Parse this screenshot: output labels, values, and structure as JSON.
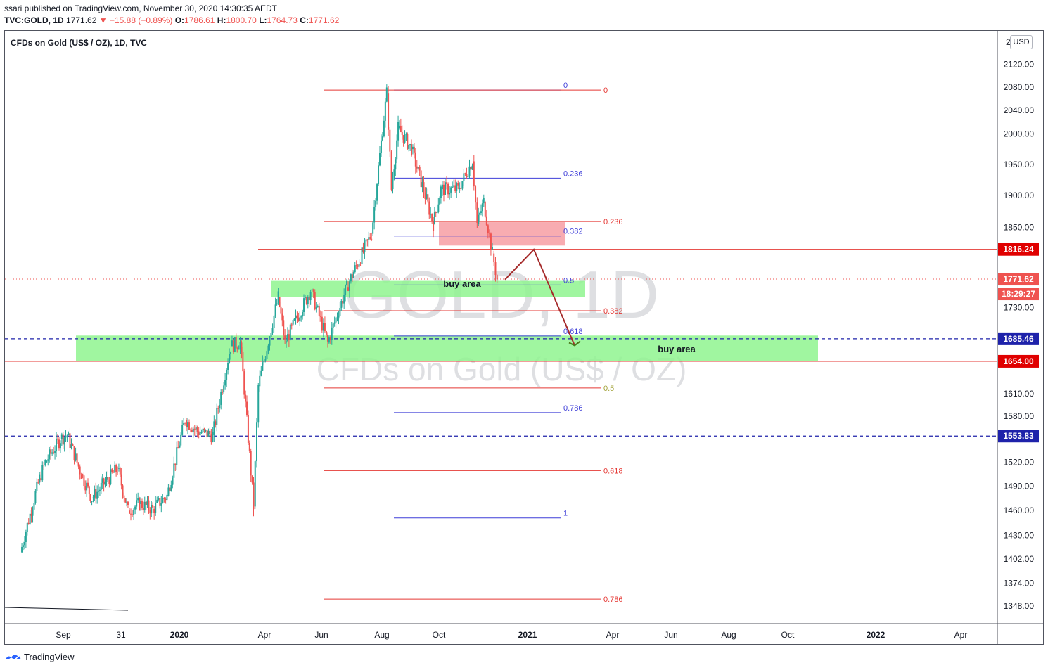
{
  "header": {
    "published_line": "ssari published on TradingView.com, November 30, 2020 14:30:35 AEDT",
    "symbol": "TVC:GOLD, 1D",
    "last": "1771.62",
    "change": "▼ −15.88 (−0.89%)",
    "o_label": "O:",
    "o_value": "1786.61",
    "h_label": "H:",
    "h_value": "1800.70",
    "l_label": "L:",
    "l_value": "1764.73",
    "c_label": "C:",
    "c_value": "1771.62"
  },
  "legend_title": "CFDs on Gold (US$ / OZ), 1D, TVC",
  "watermark": {
    "line1": "GOLD, 1D",
    "line2": "CFDs on Gold (US$ / OZ)"
  },
  "currency_button": "USD",
  "brand": "TradingView",
  "colors": {
    "up": "#26a69a",
    "down": "#ef5350",
    "fib_blue": "#3f3fd8",
    "fib_red": "#e53935",
    "zone_green": "#8ff58f",
    "zone_red": "#f7a3a8",
    "arrow": "#a52a2a",
    "dashed_blue": "#1e22aa"
  },
  "chart_data": {
    "type": "candlestick",
    "title": "CFDs on Gold (US$ / OZ), 1D, TVC",
    "y_axis_ticks": [
      "2120.00",
      "2080.00",
      "2040.00",
      "2000.00",
      "1950.00",
      "1900.00",
      "1850.00",
      "1730.00",
      "1610.00",
      "1580.00",
      "1520.00",
      "1490.00",
      "1460.00",
      "1430.00",
      "1402.00",
      "1374.00",
      "1348.00"
    ],
    "y_axis_top_partial": "2",
    "x_axis_ticks": [
      "Sep",
      "31",
      "2020",
      "Apr",
      "Jun",
      "Aug",
      "Oct",
      "2021",
      "Apr",
      "Jun",
      "Aug",
      "Oct",
      "2022",
      "Apr"
    ],
    "ohlc_path": [
      [
        "2019-07-18",
        1410
      ],
      [
        "2019-08-07",
        1500
      ],
      [
        "2019-08-13",
        1520
      ],
      [
        "2019-08-29",
        1550
      ],
      [
        "2019-09-05",
        1555
      ],
      [
        "2019-09-20",
        1505
      ],
      [
        "2019-10-01",
        1475
      ],
      [
        "2019-10-15",
        1495
      ],
      [
        "2019-10-28",
        1512
      ],
      [
        "2019-11-08",
        1460
      ],
      [
        "2019-11-20",
        1468
      ],
      [
        "2019-12-04",
        1462
      ],
      [
        "2019-12-19",
        1478
      ],
      [
        "2020-01-07",
        1575
      ],
      [
        "2020-01-20",
        1560
      ],
      [
        "2020-02-05",
        1555
      ],
      [
        "2020-02-24",
        1675
      ],
      [
        "2020-03-05",
        1680
      ],
      [
        "2020-03-19",
        1465
      ],
      [
        "2020-03-24",
        1620
      ],
      [
        "2020-04-14",
        1745
      ],
      [
        "2020-04-21",
        1680
      ],
      [
        "2020-05-18",
        1755
      ],
      [
        "2020-06-05",
        1680
      ],
      [
        "2020-06-25",
        1760
      ],
      [
        "2020-07-21",
        1840
      ],
      [
        "2020-08-06",
        2070
      ],
      [
        "2020-08-11",
        1910
      ],
      [
        "2020-08-18",
        2010
      ],
      [
        "2020-09-01",
        1975
      ],
      [
        "2020-09-24",
        1855
      ],
      [
        "2020-10-02",
        1910
      ],
      [
        "2020-10-20",
        1910
      ],
      [
        "2020-11-04",
        1955
      ],
      [
        "2020-11-09",
        1855
      ],
      [
        "2020-11-16",
        1890
      ],
      [
        "2020-11-25",
        1810
      ],
      [
        "2020-11-30",
        1771.62
      ]
    ],
    "price_labels": [
      {
        "value": "1816.24",
        "style": "red"
      },
      {
        "value": "1771.62",
        "style": "red-last"
      },
      {
        "value": "18:29:27",
        "style": "red-countdown"
      },
      {
        "value": "1685.46",
        "style": "blue"
      },
      {
        "value": "1654.00",
        "style": "red"
      },
      {
        "value": "1553.83",
        "style": "blue"
      }
    ],
    "fib_blue_labels": [
      "0",
      "0.236",
      "0.382",
      "0.5",
      "0.618",
      "0.786",
      "1"
    ],
    "fib_red_labels": [
      "0",
      "0.236",
      "0.382",
      "0.5",
      "0.618",
      "0.786"
    ],
    "zones": [
      {
        "label": "buy area",
        "color": "green"
      },
      {
        "label": "buy area",
        "color": "green"
      },
      {
        "label": "",
        "color": "red"
      }
    ]
  }
}
